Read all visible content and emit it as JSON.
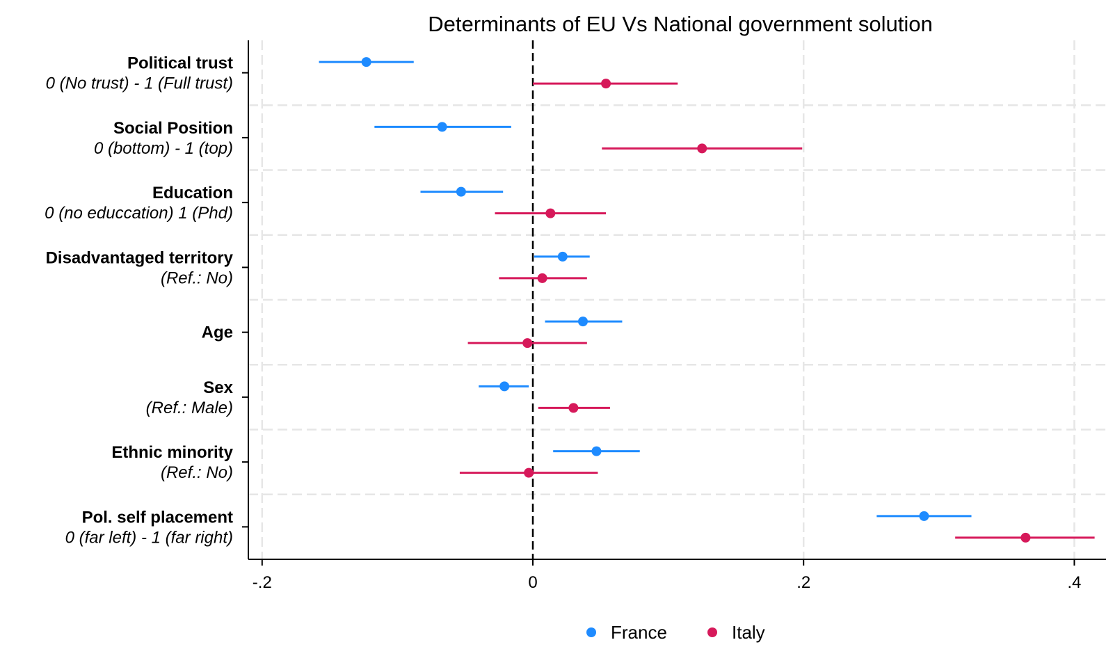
{
  "chart_data": {
    "type": "coefficient-plot",
    "title": "Determinants of EU Vs National government solution",
    "xlim": [
      -0.21,
      0.42
    ],
    "x_ticks": [
      {
        "value": -0.2,
        "label": "-.2"
      },
      {
        "value": 0,
        "label": "0"
      },
      {
        "value": 0.2,
        "label": ".2"
      },
      {
        "value": 0.4,
        "label": ".4"
      }
    ],
    "reference_line": 0,
    "grid": true,
    "legend_position": "bottom",
    "categories": [
      {
        "label": "Political trust",
        "sublabel": "0 (No trust) - 1 (Full trust)"
      },
      {
        "label": "Social Position",
        "sublabel": "0 (bottom) - 1 (top)"
      },
      {
        "label": "Education",
        "sublabel": "0 (no educcation) 1 (Phd)"
      },
      {
        "label": "Disadvantaged territory",
        "sublabel": "(Ref.: No)"
      },
      {
        "label": "Age",
        "sublabel": ""
      },
      {
        "label": "Sex",
        "sublabel": "(Ref.: Male)"
      },
      {
        "label": "Ethnic minority",
        "sublabel": "(Ref.: No)"
      },
      {
        "label": "Pol. self placement",
        "sublabel": "0 (far left) - 1 (far right)"
      }
    ],
    "series": [
      {
        "name": "France",
        "color": "#1e8bff",
        "estimates": [
          -0.123,
          -0.067,
          -0.053,
          0.022,
          0.037,
          -0.021,
          0.047,
          0.289
        ],
        "ci_low": [
          -0.158,
          -0.117,
          -0.083,
          0.001,
          0.009,
          -0.04,
          0.015,
          0.254
        ],
        "ci_high": [
          -0.088,
          -0.016,
          -0.022,
          0.042,
          0.066,
          -0.003,
          0.079,
          0.324
        ]
      },
      {
        "name": "Italy",
        "color": "#d6195a",
        "estimates": [
          0.054,
          0.125,
          0.013,
          0.007,
          -0.004,
          0.03,
          -0.003,
          0.364
        ],
        "ci_low": [
          0.0,
          0.051,
          -0.028,
          -0.025,
          -0.048,
          0.004,
          -0.054,
          0.312
        ],
        "ci_high": [
          0.107,
          0.199,
          0.054,
          0.04,
          0.04,
          0.057,
          0.048,
          0.415
        ]
      }
    ]
  }
}
